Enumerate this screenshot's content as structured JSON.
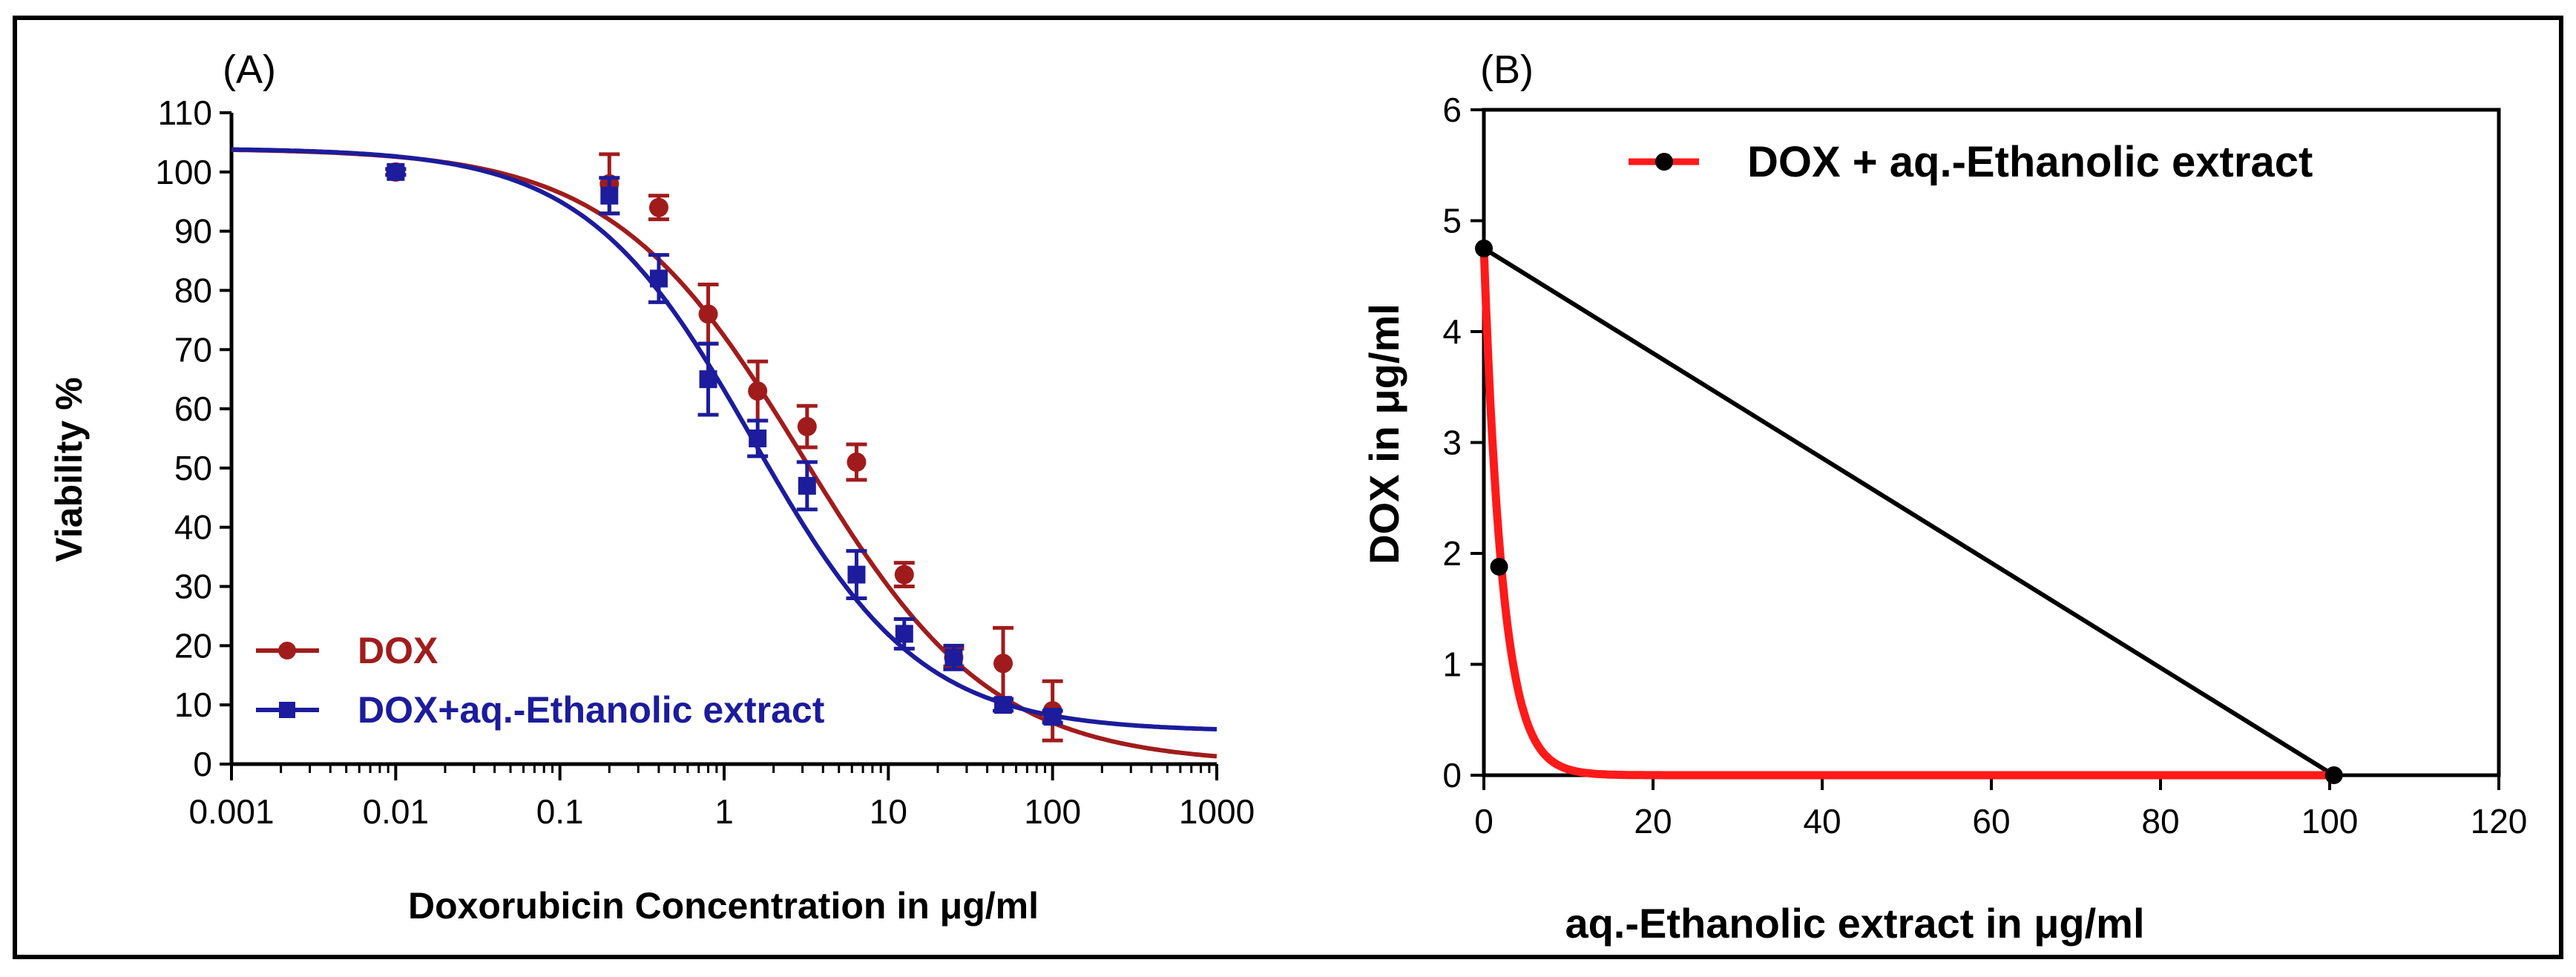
{
  "figure": {
    "frame": true
  },
  "chart_data": [
    {
      "id": "A",
      "panel_label": "(A)",
      "type": "scatter",
      "xlabel": "Doxorubicin Concentration in μg/ml",
      "ylabel": "Viability %",
      "xscale": "log",
      "xlim": [
        0.001,
        1000
      ],
      "ylim": [
        0,
        110
      ],
      "xticks": [
        0.001,
        0.01,
        0.1,
        1,
        10,
        100,
        1000
      ],
      "xtick_labels": [
        "0.001",
        "0.01",
        "0.1",
        "1",
        "10",
        "100",
        "1000"
      ],
      "yticks": [
        0,
        10,
        20,
        30,
        40,
        50,
        60,
        70,
        80,
        90,
        100,
        110
      ],
      "ytick_labels": [
        "0",
        "10",
        "20",
        "30",
        "40",
        "50",
        "60",
        "70",
        "80",
        "90",
        "100",
        "110"
      ],
      "legend_position": "bottom-left",
      "series": [
        {
          "name": "DOX",
          "color": "#a01c1c",
          "marker": "circle",
          "x": [
            0.01,
            0.2,
            0.4,
            0.8,
            1.6,
            3.2,
            6.4,
            12.5,
            25,
            50,
            100
          ],
          "y": [
            100,
            98,
            94,
            76,
            63,
            57,
            51,
            32,
            18,
            17,
            9
          ],
          "err": [
            0.5,
            5,
            2,
            5,
            5,
            3.5,
            3,
            2,
            1.5,
            6,
            5
          ],
          "fit": {
            "top": 104,
            "bottom": 0,
            "ec50": 3,
            "hill": 0.75
          }
        },
        {
          "name": "DOX+aq.-Ethanolic extract",
          "color": "#1c1c9c",
          "marker": "square",
          "x": [
            0.01,
            0.2,
            0.4,
            0.8,
            1.6,
            3.2,
            6.4,
            12.5,
            25,
            50,
            100
          ],
          "y": [
            100,
            96,
            82,
            65,
            55,
            47,
            32,
            22,
            18,
            10,
            8
          ],
          "err": [
            0.5,
            3,
            4,
            6,
            3,
            4,
            4,
            2.5,
            2,
            1,
            1
          ],
          "fit": {
            "top": 104,
            "bottom": 5.5,
            "ec50": 1.5,
            "hill": 0.85
          }
        }
      ]
    },
    {
      "id": "B",
      "panel_label": "(B)",
      "type": "line",
      "xlabel": "aq.-Ethanolic extract in μg/ml",
      "ylabel": "DOX in μg/ml",
      "xlim": [
        0,
        120
      ],
      "ylim": [
        0,
        6
      ],
      "xticks": [
        0,
        20,
        40,
        60,
        80,
        100,
        120
      ],
      "xtick_labels": [
        "0",
        "20",
        "40",
        "60",
        "80",
        "100",
        "120"
      ],
      "yticks": [
        0,
        1,
        2,
        3,
        4,
        5,
        6
      ],
      "ytick_labels": [
        "0",
        "1",
        "2",
        "3",
        "4",
        "5",
        "6"
      ],
      "legend_position": "top-right",
      "series": [
        {
          "name": "DOX + aq.-Ethanolic extract",
          "color": "#ff1a1a",
          "marker_color": "#000000",
          "curve": {
            "a": 4.75,
            "k": 0.45
          }
        }
      ],
      "isobole_line": {
        "color": "#000000",
        "x": [
          0,
          100.5
        ],
        "y": [
          4.75,
          0
        ]
      },
      "points": {
        "x": [
          0,
          1.8,
          100.5
        ],
        "y": [
          4.75,
          1.88,
          0
        ]
      }
    }
  ]
}
